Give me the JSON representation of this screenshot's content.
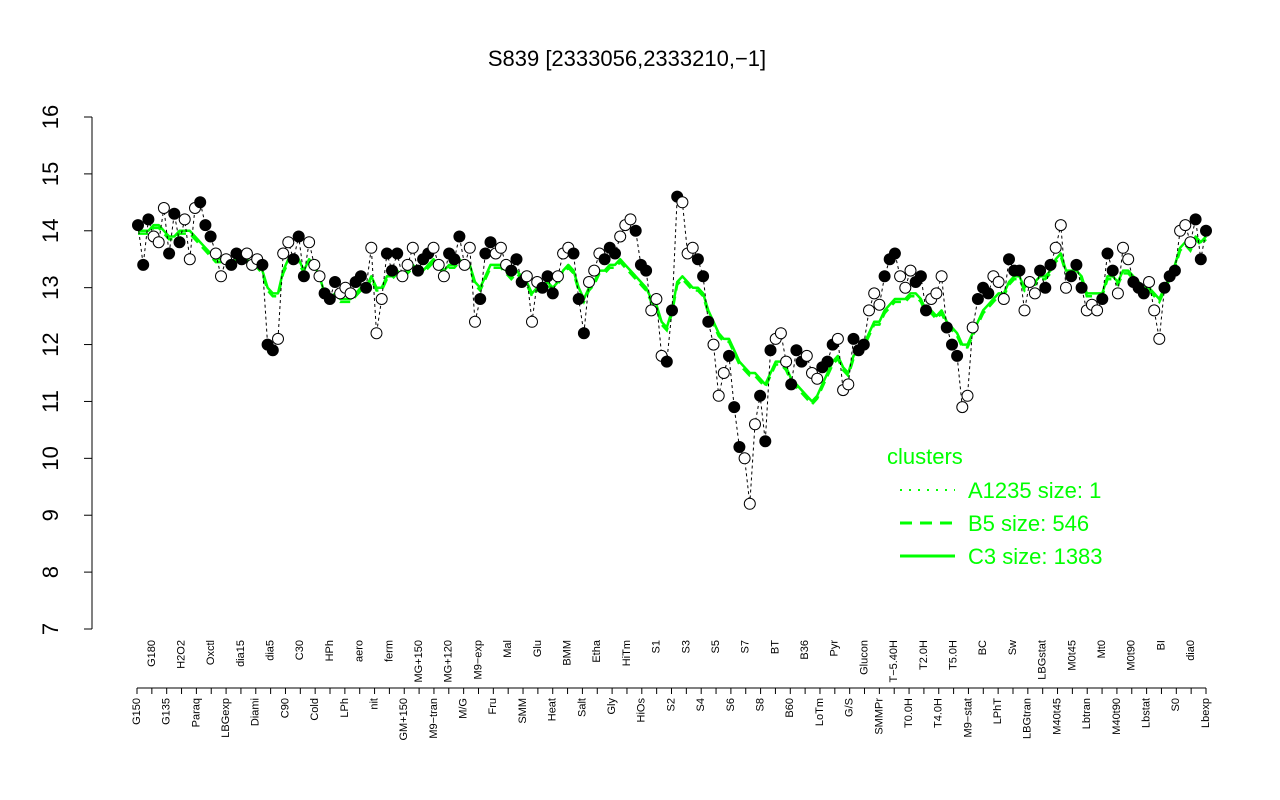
{
  "chart_data": {
    "type": "line",
    "title": "S839 [2333056,2333210,−1]",
    "xlabel": "",
    "ylabel": "",
    "ylim": [
      7,
      16
    ],
    "yticks": [
      7,
      8,
      9,
      10,
      11,
      12,
      13,
      14,
      15,
      16
    ],
    "grid": false,
    "colors": {
      "cluster": "#00ff00",
      "points": "#000000",
      "axis": "#000000"
    },
    "categories": [
      "G150",
      "G180",
      "G135",
      "H2O2",
      "Paraq",
      "Oxctl",
      "LBGexp",
      "dia15",
      "Diami",
      "dia5",
      "C90",
      "C30",
      "Cold",
      "HPh",
      "LPh",
      "aero",
      "nit",
      "ferm",
      "GM+150",
      "MG+150",
      "M9−tran",
      "MG+120",
      "M/G",
      "M9−exp",
      "Fru",
      "Mal",
      "SMM",
      "Glu",
      "Heat",
      "BMM",
      "Salt",
      "Etha",
      "Gly",
      "HiTm",
      "HiOs",
      "S1",
      "S2",
      "S3",
      "S4",
      "S5",
      "S6",
      "S7",
      "S8",
      "BT",
      "B60",
      "B36",
      "LoTm",
      "Pyr",
      "G/S",
      "Glucon",
      "SMMPr",
      "T−5.40H",
      "T0.0H",
      "T2.0H",
      "T4.0H",
      "T5.0H",
      "M9−stat",
      "BC",
      "LPhT",
      "Sw",
      "LBGtran",
      "LBGstat",
      "M40t45",
      "M0t45",
      "Lbtran",
      "Mt0",
      "M40t90",
      "M0t90",
      "Lbstat",
      "BI",
      "S0",
      "dia0",
      "Lbexp"
    ],
    "series": [
      {
        "name": "A1235 size: 1",
        "style": "dotted"
      },
      {
        "name": "B5 size: 546",
        "style": "dashed"
      },
      {
        "name": "C3 size: 1383",
        "style": "solid"
      }
    ],
    "points_y": [
      14.1,
      13.4,
      14.2,
      13.9,
      13.8,
      14.4,
      13.6,
      14.3,
      13.8,
      14.2,
      13.5,
      14.4,
      14.5,
      14.1,
      13.9,
      13.6,
      13.2,
      13.5,
      13.4,
      13.6,
      13.5,
      13.6,
      13.4,
      13.5,
      13.4,
      12.0,
      11.9,
      12.1,
      13.6,
      13.8,
      13.5,
      13.9,
      13.2,
      13.8,
      13.4,
      13.2,
      12.9,
      12.8,
      13.1,
      12.9,
      13.0,
      12.9,
      13.1,
      13.2,
      13.0,
      13.7,
      12.2,
      12.8,
      13.6,
      13.3,
      13.6,
      13.2,
      13.4,
      13.7,
      13.3,
      13.5,
      13.6,
      13.7,
      13.4,
      13.2,
      13.6,
      13.5,
      13.9,
      13.4,
      13.7,
      12.4,
      12.8,
      13.6,
      13.8,
      13.6,
      13.7,
      13.4,
      13.3,
      13.5,
      13.1,
      13.2,
      12.4,
      13.1,
      13.0,
      13.2,
      12.9,
      13.2,
      13.6,
      13.7,
      13.6,
      12.8,
      12.2,
      13.1,
      13.3,
      13.6,
      13.5,
      13.7,
      13.6,
      13.9,
      14.1,
      14.2,
      14.0,
      13.4,
      13.3,
      12.6,
      12.8,
      11.8,
      11.7,
      12.6,
      14.6,
      14.5,
      13.6,
      13.7,
      13.5,
      13.2,
      12.4,
      12.0,
      11.1,
      11.5,
      11.8,
      10.9,
      10.2,
      10.0,
      9.2,
      10.6,
      11.1,
      10.3,
      11.9,
      12.1,
      12.2,
      11.7,
      11.3,
      11.9,
      11.7,
      11.8,
      11.5,
      11.4,
      11.6,
      11.7,
      12.0,
      12.1,
      11.2,
      11.3,
      12.1,
      11.9,
      12.0,
      12.6,
      12.9,
      12.7,
      13.2,
      13.5,
      13.6,
      13.2,
      13.0,
      13.3,
      13.1,
      13.2,
      12.6,
      12.8,
      12.9,
      13.2,
      12.3,
      12.0,
      11.8,
      10.9,
      11.1,
      12.3,
      12.8,
      13.0,
      12.9,
      13.2,
      13.1,
      12.8,
      13.5,
      13.3,
      13.3,
      12.6,
      13.1,
      12.9,
      13.3,
      13.0,
      13.4,
      13.7,
      14.1,
      13.0,
      13.2,
      13.4,
      13.0,
      12.6,
      12.7,
      12.6,
      12.8,
      13.6,
      13.3,
      12.9,
      13.7,
      13.5,
      13.1,
      13.0,
      12.9,
      13.1,
      12.6,
      12.1,
      13.0,
      13.2,
      13.3,
      14.0,
      14.1,
      13.8,
      14.2,
      13.5,
      14.0
    ],
    "cluster_C3_y": [
      14.0,
      14.0,
      14.0,
      14.1,
      14.1,
      14.0,
      13.9,
      13.9,
      14.0,
      14.0,
      14.0,
      13.9,
      13.8,
      13.7,
      13.6,
      13.5,
      13.5,
      13.5,
      13.4,
      13.5,
      13.5,
      13.5,
      13.4,
      13.4,
      13.3,
      13.0,
      12.9,
      12.9,
      13.3,
      13.5,
      13.5,
      13.5,
      13.3,
      13.5,
      13.4,
      13.2,
      12.9,
      12.8,
      12.9,
      12.8,
      12.8,
      12.8,
      12.9,
      13.0,
      13.0,
      13.2,
      13.0,
      13.0,
      13.2,
      13.2,
      13.3,
      13.2,
      13.3,
      13.4,
      13.3,
      13.3,
      13.4,
      13.5,
      13.4,
      13.3,
      13.4,
      13.4,
      13.5,
      13.4,
      13.4,
      13.1,
      13.0,
      13.2,
      13.4,
      13.4,
      13.4,
      13.3,
      13.2,
      13.3,
      13.2,
      13.1,
      12.9,
      13.0,
      13.0,
      13.1,
      13.0,
      13.1,
      13.3,
      13.4,
      13.3,
      13.0,
      12.8,
      13.0,
      13.1,
      13.3,
      13.3,
      13.4,
      13.4,
      13.5,
      13.4,
      13.3,
      13.2,
      13.1,
      13.0,
      12.8,
      12.7,
      12.4,
      12.3,
      12.6,
      13.1,
      13.2,
      13.1,
      13.0,
      13.0,
      12.9,
      12.6,
      12.4,
      12.2,
      12.1,
      12.1,
      11.9,
      11.7,
      11.6,
      11.5,
      11.5,
      11.4,
      11.3,
      11.5,
      11.7,
      11.7,
      11.6,
      11.4,
      11.3,
      11.2,
      11.1,
      11.0,
      11.1,
      11.3,
      11.5,
      11.7,
      11.8,
      11.6,
      11.5,
      11.8,
      11.9,
      12.0,
      12.2,
      12.4,
      12.4,
      12.6,
      12.7,
      12.8,
      12.8,
      12.8,
      12.9,
      12.9,
      12.8,
      12.6,
      12.6,
      12.5,
      12.6,
      12.4,
      12.3,
      12.2,
      12.0,
      12.0,
      12.2,
      12.4,
      12.6,
      12.7,
      12.8,
      12.9,
      12.9,
      13.1,
      13.2,
      13.2,
      13.0,
      13.1,
      13.1,
      13.2,
      13.2,
      13.3,
      13.5,
      13.6,
      13.3,
      13.3,
      13.3,
      13.2,
      12.9,
      12.9,
      12.9,
      12.9,
      13.2,
      13.2,
      13.1,
      13.3,
      13.3,
      13.2,
      13.1,
      13.0,
      13.0,
      12.9,
      12.8,
      13.0,
      13.2,
      13.4,
      13.7,
      13.8,
      13.7,
      13.9,
      13.8,
      13.9
    ],
    "legend": {
      "title": "clusters",
      "entries": [
        "A1235 size: 1",
        "B5 size: 546",
        "C3 size: 1383"
      ],
      "position": "bottom-right"
    }
  }
}
